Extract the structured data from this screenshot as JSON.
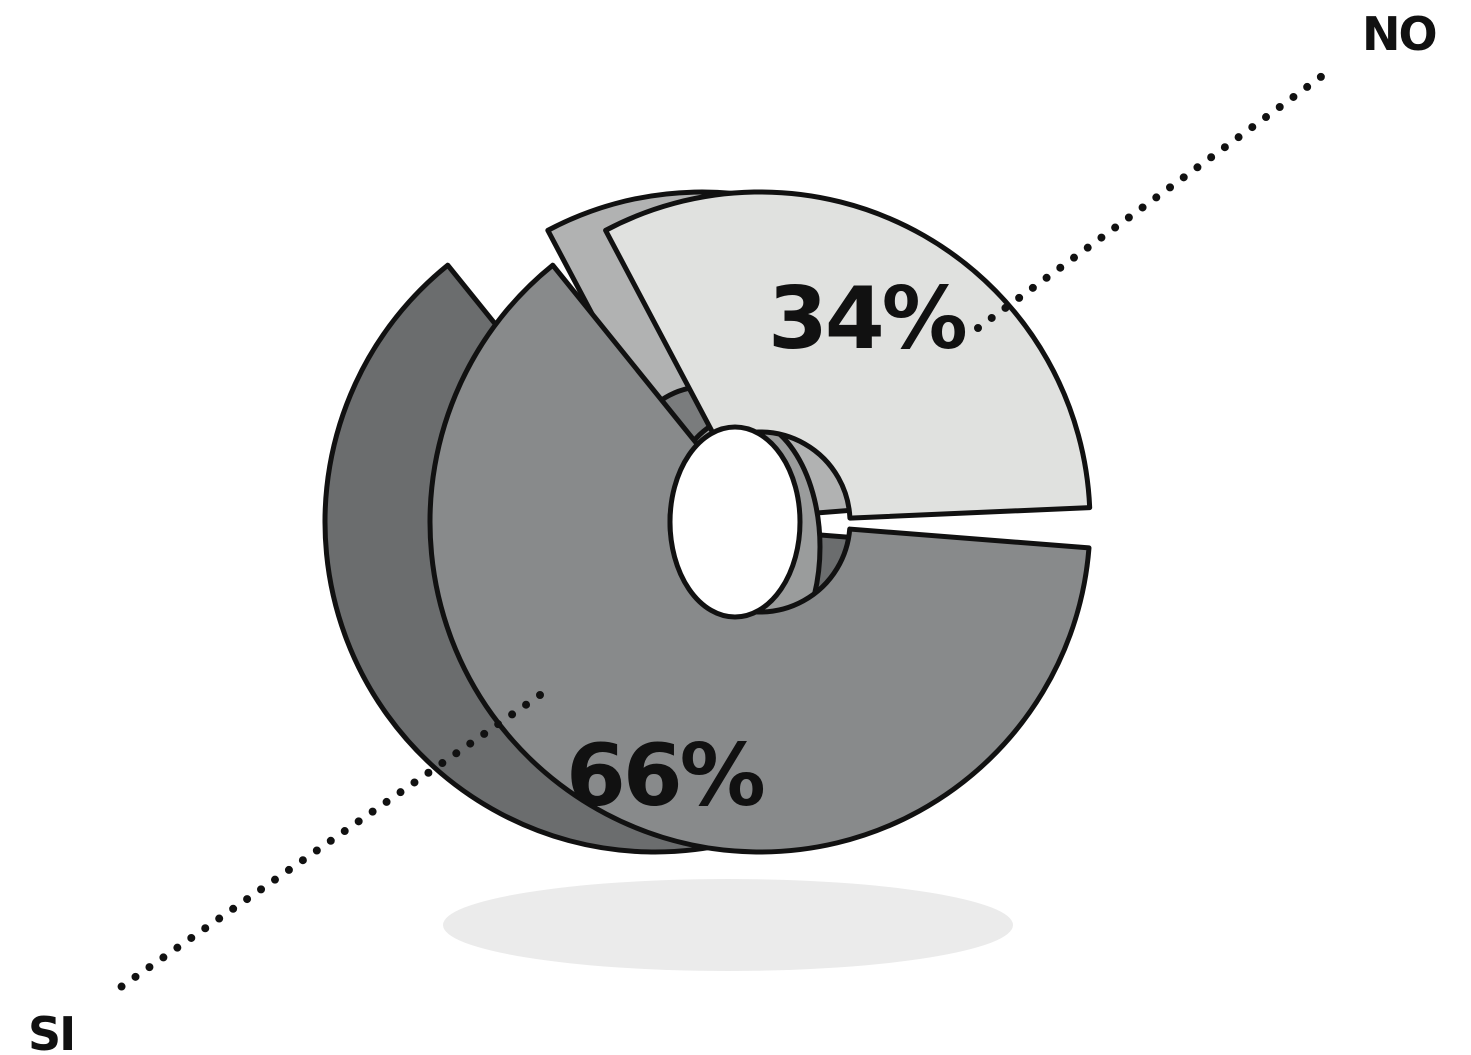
{
  "chart_data": {
    "type": "pie",
    "style": "3d-donut-sketch",
    "categories": [
      "SI",
      "NO"
    ],
    "values": [
      66,
      34
    ],
    "value_labels": [
      "66%",
      "34%"
    ],
    "title": "",
    "legend": "none",
    "colors": {
      "si_face": "#888a8b",
      "si_side": "#6b6d6e",
      "no_face": "#e0e1df",
      "no_side": "#b1b2b2",
      "outline": "#111111",
      "leader": "#111111",
      "shadow": "#ebebeb"
    }
  }
}
